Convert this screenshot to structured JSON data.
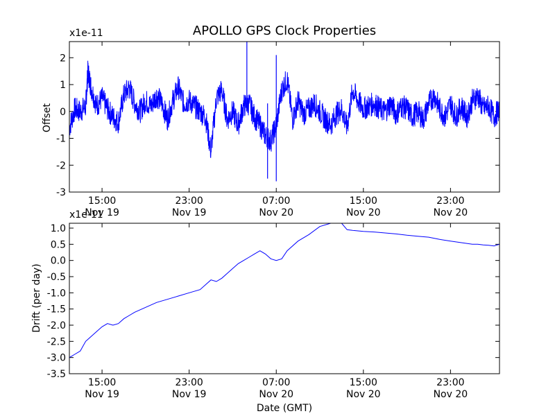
{
  "colors": {
    "line": "#0000ff",
    "axes": "#000000",
    "background": "#ffffff"
  },
  "chart_data": [
    {
      "type": "line",
      "title": "APOLLO GPS Clock Properties",
      "xlabel": "",
      "ylabel": "Offset",
      "offset_text": "x1e-11",
      "ylim": [
        -3,
        2.6
      ],
      "xlim_hours_from_nov19_0900": [
        0,
        39.5
      ],
      "yticks": [
        2,
        1,
        0,
        -1,
        -2,
        -3
      ],
      "ytick_labels": [
        "2",
        "1",
        "0",
        "-1",
        "-2",
        "-3"
      ],
      "xticks": [
        {
          "time": "15:00",
          "date": "Nov 19",
          "hours_from_nov19_0900": 3
        },
        {
          "time": "23:00",
          "date": "Nov 19",
          "hours_from_nov19_0900": 11
        },
        {
          "time": "07:00",
          "date": "Nov 20",
          "hours_from_nov19_0900": 19
        },
        {
          "time": "15:00",
          "date": "Nov 20",
          "hours_from_nov19_0900": 27
        },
        {
          "time": "23:00",
          "date": "Nov 20",
          "hours_from_nov19_0900": 35
        }
      ],
      "grid": false,
      "series": [
        {
          "x_hours_from_nov19_0900": [
            0,
            0.5,
            1,
            1.5,
            1.7,
            2,
            2.5,
            3,
            3.5,
            4,
            4.5,
            5,
            5.5,
            6,
            6.5,
            7,
            7.5,
            8,
            8.5,
            9,
            9.5,
            10,
            10.5,
            11,
            11.5,
            12,
            12.5,
            13,
            13.5,
            14,
            14.5,
            15,
            15.5,
            16,
            16.5,
            17,
            17.5,
            18,
            18.5,
            19,
            19.5,
            20,
            20.5,
            21,
            21.5,
            22,
            22.5,
            23,
            23.5,
            24,
            24.5,
            25,
            25.5,
            26,
            26.5,
            27,
            27.5,
            28,
            28.5,
            29,
            29.5,
            30,
            30.5,
            31,
            31.5,
            32,
            32.5,
            33,
            33.5,
            34,
            34.5,
            35,
            35.5,
            36,
            36.5,
            37,
            37.5,
            38,
            38.5,
            39,
            39.5
          ],
          "values": [
            -0.6,
            0.1,
            0.0,
            0.2,
            1.5,
            0.9,
            0.2,
            0.5,
            0.1,
            -0.2,
            -0.4,
            0.6,
            0.9,
            0.3,
            0.0,
            0.4,
            0.2,
            0.6,
            0.3,
            -0.3,
            0.4,
            0.9,
            0.3,
            0.4,
            0.2,
            0.0,
            -0.2,
            -1.5,
            0.5,
            0.8,
            -0.3,
            0.0,
            -0.5,
            0.2,
            0.3,
            -0.2,
            -0.5,
            -0.9,
            -1.1,
            -0.5,
            0.8,
            1.2,
            -0.3,
            0.4,
            -0.1,
            0.1,
            0.3,
            0.0,
            -0.3,
            -0.5,
            -0.1,
            0.1,
            -0.6,
            0.8,
            0.4,
            0.1,
            0.2,
            0.3,
            0.1,
            0.0,
            0.3,
            -0.1,
            0.2,
            0.1,
            -0.2,
            0.0,
            -0.3,
            0.3,
            0.6,
            0.1,
            -0.2,
            0.3,
            -0.2,
            0.2,
            -0.2,
            0.4,
            0.6,
            0.1,
            0.2,
            -0.2,
            0.1
          ],
          "spikes": [
            {
              "hours_from_nov19_0900": 16.3,
              "high": 2.6,
              "low": 0.1
            },
            {
              "hours_from_nov19_0900": 19.0,
              "high": 2.1,
              "low": -2.6
            },
            {
              "hours_from_nov19_0900": 18.2,
              "high": 0.3,
              "low": -2.5
            }
          ]
        }
      ]
    },
    {
      "type": "line",
      "title": "",
      "xlabel": "Date (GMT)",
      "ylabel": "Drift (per day)",
      "offset_text": "x1e-11",
      "ylim": [
        -3.5,
        1.15
      ],
      "xlim_hours_from_nov19_0900": [
        0,
        39.5
      ],
      "yticks": [
        1.0,
        0.5,
        0.0,
        -0.5,
        -1.0,
        -1.5,
        -2.0,
        -2.5,
        -3.0,
        -3.5
      ],
      "ytick_labels": [
        "1.0",
        "0.5",
        "0.0",
        "-0.5",
        "-1.0",
        "-1.5",
        "-2.0",
        "-2.5",
        "-3.0",
        "-3.5"
      ],
      "xticks": [
        {
          "time": "15:00",
          "date": "Nov 19",
          "hours_from_nov19_0900": 3
        },
        {
          "time": "23:00",
          "date": "Nov 19",
          "hours_from_nov19_0900": 11
        },
        {
          "time": "07:00",
          "date": "Nov 20",
          "hours_from_nov19_0900": 19
        },
        {
          "time": "15:00",
          "date": "Nov 20",
          "hours_from_nov19_0900": 27
        },
        {
          "time": "23:00",
          "date": "Nov 20",
          "hours_from_nov19_0900": 35
        }
      ],
      "grid": false,
      "series": [
        {
          "x_hours_from_nov19_0900": [
            0,
            0.5,
            1,
            1.5,
            2,
            2.5,
            3,
            3.5,
            4,
            4.5,
            5,
            5.5,
            6,
            7,
            8,
            9,
            10,
            11,
            12,
            13,
            13.5,
            14,
            14.5,
            15,
            15.5,
            16,
            16.5,
            17,
            17.5,
            18,
            18.5,
            19,
            19.5,
            20,
            21,
            22,
            23,
            24,
            25,
            25.5,
            26,
            27,
            28,
            29,
            30,
            31,
            32,
            33,
            34,
            35,
            36,
            37,
            37.5,
            38,
            38.5,
            39,
            39.5
          ],
          "values": [
            -3.0,
            -2.9,
            -2.8,
            -2.5,
            -2.35,
            -2.2,
            -2.05,
            -1.95,
            -2.0,
            -1.95,
            -1.8,
            -1.7,
            -1.6,
            -1.45,
            -1.3,
            -1.2,
            -1.1,
            -1.0,
            -0.9,
            -0.6,
            -0.65,
            -0.55,
            -0.4,
            -0.25,
            -0.1,
            0.0,
            0.1,
            0.2,
            0.3,
            0.2,
            0.05,
            0.0,
            0.05,
            0.3,
            0.6,
            0.8,
            1.05,
            1.15,
            1.15,
            0.95,
            0.93,
            0.9,
            0.88,
            0.85,
            0.82,
            0.78,
            0.75,
            0.72,
            0.65,
            0.6,
            0.55,
            0.5,
            0.5,
            0.48,
            0.47,
            0.45,
            0.5
          ]
        }
      ]
    }
  ]
}
